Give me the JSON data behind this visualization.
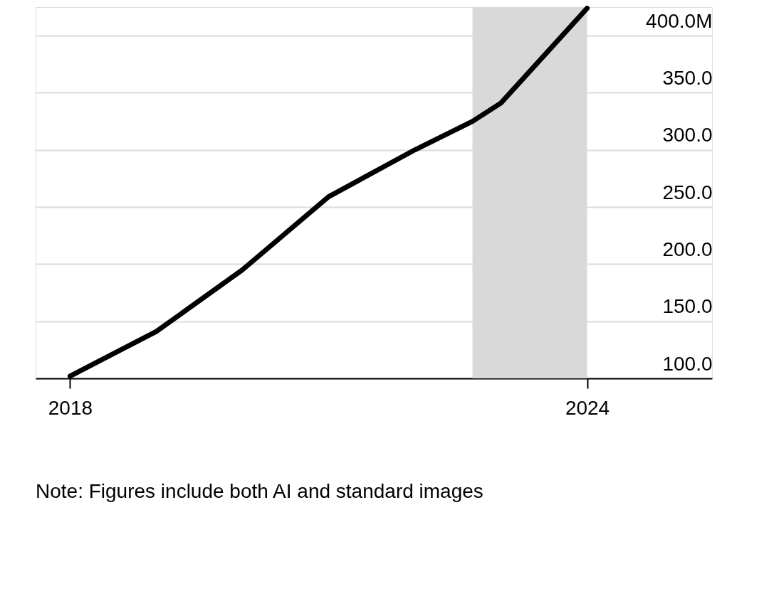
{
  "chart_data": {
    "type": "line",
    "x": [
      2018,
      2019,
      2020,
      2021,
      2022,
      2022.67,
      2023,
      2024
    ],
    "series": [
      {
        "color": "#000000",
        "values": [
          102,
          141,
          195,
          259,
          300,
          325,
          341,
          424
        ]
      }
    ],
    "xlim": [
      2017.6,
      2025.45
    ],
    "xticks": [
      2018,
      2024
    ],
    "ylim": [
      100,
      425
    ],
    "yticks": [
      {
        "value": 100,
        "label": "100.0"
      },
      {
        "value": 150,
        "label": "150.0"
      },
      {
        "value": 200,
        "label": "200.0"
      },
      {
        "value": 250,
        "label": "250.0"
      },
      {
        "value": 300,
        "label": "300.0"
      },
      {
        "value": 350,
        "label": "350.0"
      },
      {
        "value": 400,
        "label": "400.0M"
      }
    ],
    "bands": [
      {
        "axis": "x",
        "from": 2022.67,
        "to": 2024,
        "color": "#d9d9d9"
      }
    ],
    "grid": "y",
    "marker": "none",
    "line_style": "solid",
    "annotations": [
      "Note: Figures include both AI and standard images"
    ]
  }
}
